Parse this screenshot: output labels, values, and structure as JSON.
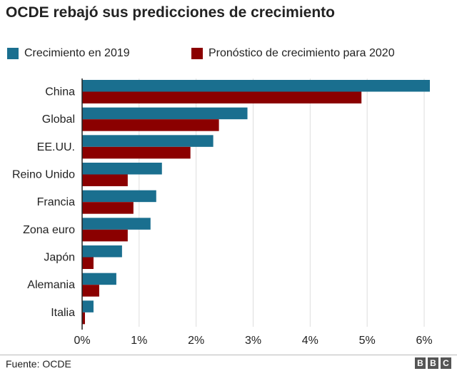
{
  "chart_data": {
    "type": "bar",
    "orientation": "horizontal",
    "title": "OCDE rebajó sus predicciones de crecimiento",
    "categories": [
      "China",
      "Global",
      "EE.UU.",
      "Reino Unido",
      "Francia",
      "Zona euro",
      "Japón",
      "Alemania",
      "Italia"
    ],
    "series": [
      {
        "name": "Crecimiento en 2019",
        "color": "#1a6f8f",
        "values": [
          6.1,
          2.9,
          2.3,
          1.4,
          1.3,
          1.2,
          0.7,
          0.6,
          0.2
        ]
      },
      {
        "name": "Pronóstico de crecimiento para 2020",
        "color": "#8b0000",
        "values": [
          4.9,
          2.4,
          1.9,
          0.8,
          0.9,
          0.8,
          0.2,
          0.3,
          0.05
        ]
      }
    ],
    "xlim": [
      0,
      6.2
    ],
    "ticks": [
      0,
      1,
      2,
      3,
      4,
      5,
      6
    ],
    "tick_labels": [
      "0%",
      "1%",
      "2%",
      "3%",
      "4%",
      "5%",
      "6%"
    ],
    "grid": true,
    "legend_position": "top-left"
  },
  "footer": {
    "source": "Fuente: OCDE",
    "logo_letters": [
      "B",
      "B",
      "C"
    ]
  },
  "colors": {
    "grid": "#dddddd",
    "axis": "#222222"
  }
}
